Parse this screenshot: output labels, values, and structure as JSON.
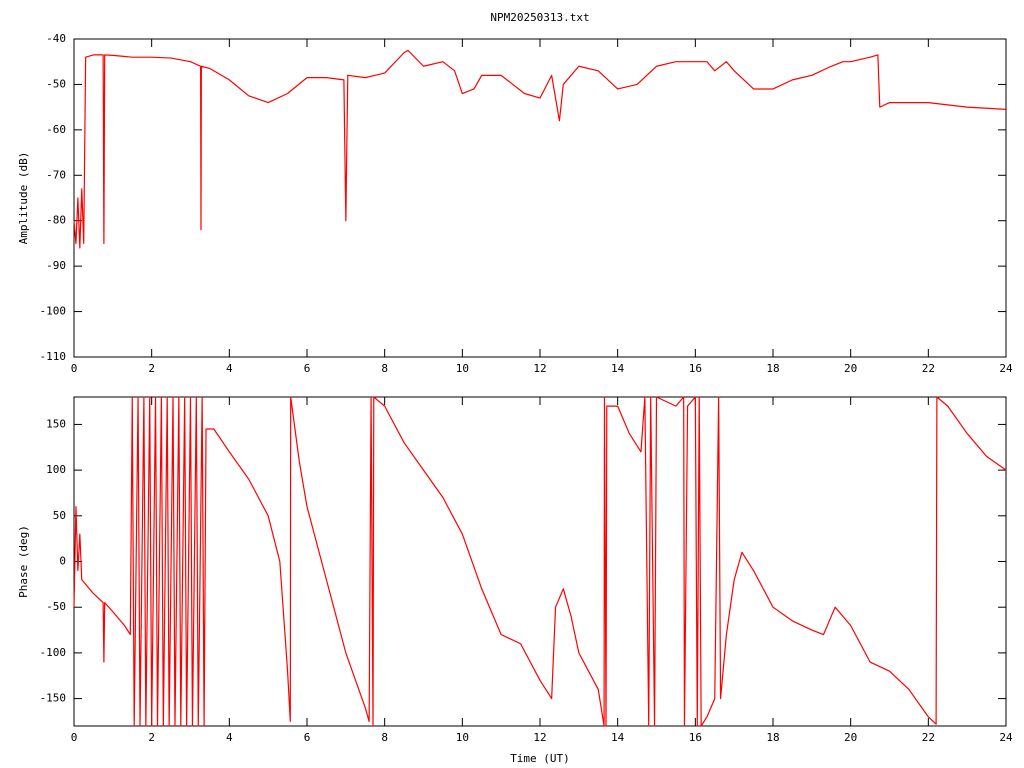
{
  "chart_data": [
    {
      "type": "line",
      "title": "NPM20250313.txt",
      "y_label": "Amplitude (dB)",
      "x": [
        0,
        0.05,
        0.1,
        0.15,
        0.2,
        0.25,
        0.3,
        0.5,
        0.75,
        0.77,
        0.79,
        1,
        1.5,
        2,
        2.5,
        3,
        3.26,
        3.27,
        3.28,
        3.5,
        4,
        4.5,
        5,
        5.5,
        6,
        6.5,
        6.95,
        7.0,
        7.05,
        7.5,
        8,
        8.5,
        8.6,
        9,
        9.5,
        9.8,
        10,
        10.3,
        10.5,
        11,
        11.3,
        11.6,
        12,
        12.3,
        12.5,
        12.6,
        13,
        13.5,
        14,
        14.5,
        15,
        15.5,
        16,
        16.3,
        16.5,
        16.8,
        17,
        17.5,
        18,
        18.5,
        19,
        19.5,
        19.8,
        20,
        20.5,
        20.7,
        20.75,
        21,
        22,
        23,
        24
      ],
      "series": [
        {
          "color": "#ff0000",
          "values": [
            -80,
            -85,
            -75,
            -86,
            -73,
            -85,
            -44,
            -43.5,
            -43.5,
            -85,
            -43.5,
            -43.6,
            -44,
            -44,
            -44.2,
            -45,
            -46,
            -82,
            -46,
            -46.5,
            -49,
            -52.5,
            -54,
            -52,
            -48.5,
            -48.5,
            -49,
            -80,
            -48,
            -48.5,
            -47.5,
            -43,
            -42.5,
            -46,
            -45,
            -47,
            -52,
            -51,
            -48,
            -48,
            -50,
            -52,
            -53,
            -48,
            -58,
            -50,
            -46,
            -47,
            -51,
            -50,
            -46,
            -45,
            -45,
            -45,
            -47,
            -45,
            -47,
            -51,
            -51,
            -49,
            -48,
            -46,
            -45,
            -45,
            -44,
            -43.5,
            -55,
            -54,
            -54,
            -55,
            -55.5
          ]
        }
      ],
      "xlim": [
        0,
        24
      ],
      "xticks": [
        0,
        2,
        4,
        6,
        8,
        10,
        12,
        14,
        16,
        18,
        20,
        22,
        24
      ],
      "ylim": [
        -110,
        -40
      ],
      "yticks": [
        -110,
        -100,
        -90,
        -80,
        -70,
        -60,
        -50,
        -40
      ]
    },
    {
      "type": "line",
      "x_label": "Time (UT)",
      "y_label": "Phase (deg)",
      "x": [
        0,
        0.05,
        0.1,
        0.15,
        0.2,
        0.5,
        0.75,
        0.77,
        0.79,
        1,
        1.3,
        1.45,
        1.5,
        1.55,
        1.65,
        1.7,
        1.8,
        1.85,
        1.95,
        2.0,
        2.1,
        2.15,
        2.25,
        2.3,
        2.4,
        2.45,
        2.55,
        2.6,
        2.7,
        2.75,
        2.85,
        2.9,
        3.0,
        3.05,
        3.15,
        3.2,
        3.3,
        3.35,
        3.4,
        3.6,
        4,
        4.5,
        5,
        5.3,
        5.5,
        5.57,
        5.58,
        5.8,
        6,
        6.5,
        7,
        7.5,
        7.6,
        7.65,
        7.7,
        7.72,
        8,
        8.5,
        9,
        9.5,
        10,
        10.5,
        11,
        11.5,
        12,
        12.3,
        12.4,
        12.6,
        12.8,
        13,
        13.5,
        13.65,
        13.66,
        13.7,
        13.72,
        14,
        14.3,
        14.6,
        14.7,
        14.8,
        14.85,
        14.95,
        15,
        15.5,
        15.7,
        15.72,
        15.8,
        16,
        16.05,
        16.1,
        16.15,
        16.3,
        16.5,
        16.6,
        16.65,
        16.8,
        17,
        17.2,
        17.5,
        18,
        18.5,
        19,
        19.3,
        19.6,
        20,
        20.5,
        21,
        21.5,
        22,
        22.2,
        22.22,
        22.5,
        23,
        23.5,
        24
      ],
      "series": [
        {
          "color": "#ff0000",
          "values": [
            -50,
            60,
            -10,
            30,
            -20,
            -35,
            -45,
            -110,
            -45,
            -55,
            -70,
            -80,
            180,
            -180,
            180,
            -180,
            180,
            -180,
            180,
            -180,
            180,
            -180,
            180,
            -180,
            180,
            -180,
            180,
            -180,
            180,
            -180,
            180,
            -180,
            180,
            -180,
            180,
            -180,
            180,
            -180,
            145,
            145,
            120,
            90,
            50,
            0,
            -120,
            -175,
            180,
            110,
            60,
            -20,
            -100,
            -160,
            -175,
            180,
            -180,
            180,
            170,
            130,
            100,
            70,
            30,
            -30,
            -80,
            -90,
            -130,
            -150,
            -50,
            -30,
            -60,
            -100,
            -140,
            -180,
            180,
            -180,
            170,
            170,
            140,
            120,
            180,
            -180,
            180,
            -180,
            180,
            170,
            180,
            -180,
            170,
            180,
            -180,
            180,
            -180,
            -170,
            -150,
            180,
            -150,
            -80,
            -20,
            10,
            -10,
            -50,
            -65,
            -75,
            -80,
            -50,
            -70,
            -110,
            -120,
            -140,
            -170,
            -178,
            180,
            170,
            140,
            115,
            100
          ]
        }
      ],
      "xlim": [
        0,
        24
      ],
      "xticks": [
        0,
        2,
        4,
        6,
        8,
        10,
        12,
        14,
        16,
        18,
        20,
        22,
        24
      ],
      "ylim": [
        -180,
        180
      ],
      "yticks": [
        -150,
        -100,
        -50,
        0,
        50,
        100,
        150
      ]
    }
  ]
}
